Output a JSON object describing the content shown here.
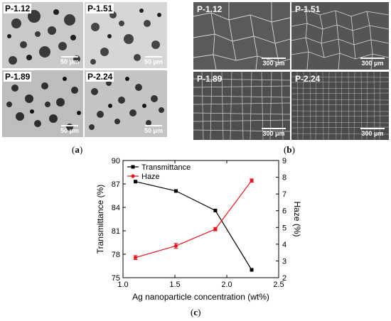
{
  "panel_a": {
    "caption_open": "(",
    "caption_letter": "a",
    "caption_close": ")",
    "tiles": [
      {
        "label": "P-1.12",
        "scale": "50 μm"
      },
      {
        "label": "P-1.51",
        "scale": "50 μm"
      },
      {
        "label": "P-1.89",
        "scale": "50 μm"
      },
      {
        "label": "P-2.24",
        "scale": "50 μm"
      }
    ]
  },
  "panel_b": {
    "caption_open": "(",
    "caption_letter": "b",
    "caption_close": ")",
    "tiles": [
      {
        "label": "P-1.12",
        "scale": "300 μm"
      },
      {
        "label": "P-1.51",
        "scale": "300 μm"
      },
      {
        "label": "P-1.89",
        "scale": "300 μm"
      },
      {
        "label": "P-2.24",
        "scale": "300 μm"
      }
    ]
  },
  "panel_c": {
    "caption_open": "(",
    "caption_letter": "c",
    "caption_close": ")"
  },
  "chart_data": {
    "type": "line",
    "xlabel": "Ag nanoparticle concentration (wt%)",
    "ylabel_left": "Transmittance (%)",
    "ylabel_right": "Haze (%)",
    "xlim": [
      1.0,
      2.5
    ],
    "ylim_left": [
      75,
      90
    ],
    "ylim_right": [
      2,
      9
    ],
    "x_ticks": [
      "1.0",
      "1.5",
      "2.0",
      "2.5"
    ],
    "y_left_ticks": [
      "75",
      "78",
      "81",
      "84",
      "87",
      "90"
    ],
    "y_right_ticks": [
      "2",
      "3",
      "4",
      "5",
      "6",
      "7",
      "8",
      "9"
    ],
    "legend_position": "top-left",
    "series": [
      {
        "name": "Transmittance",
        "axis": "left",
        "color": "#000000",
        "marker": "square",
        "x": [
          1.12,
          1.51,
          1.89,
          2.24
        ],
        "y": [
          87.3,
          86.1,
          83.6,
          76.0
        ]
      },
      {
        "name": "Haze",
        "axis": "right",
        "color": "#e8141b",
        "marker": "circle",
        "x": [
          1.12,
          1.51,
          1.89,
          2.24
        ],
        "y": [
          3.2,
          3.9,
          4.9,
          7.8
        ],
        "error": [
          0.12,
          0.15,
          0.1,
          0.1
        ]
      }
    ]
  }
}
